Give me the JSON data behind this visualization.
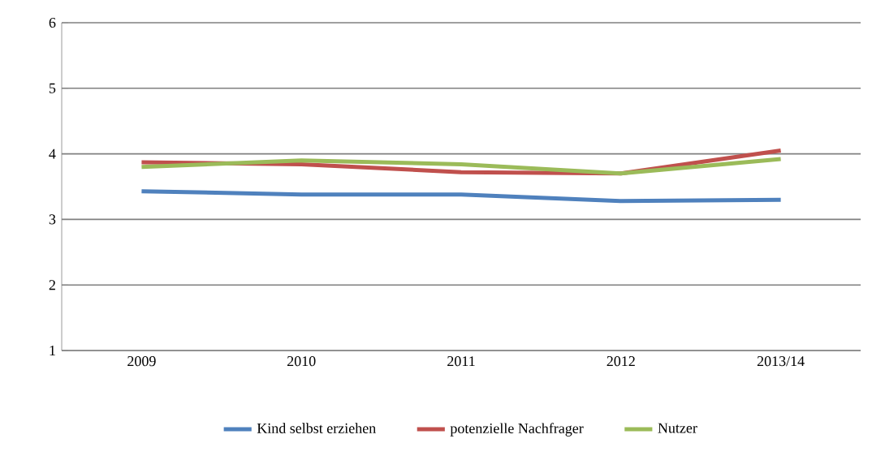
{
  "chart_data": {
    "type": "line",
    "categories": [
      "2009",
      "2010",
      "2011",
      "2012",
      "2013/14"
    ],
    "series": [
      {
        "name": "Kind selbst erziehen",
        "color": "#4f81bd",
        "values": [
          3.43,
          3.38,
          3.38,
          3.28,
          3.3
        ]
      },
      {
        "name": "potenzielle Nachfrager",
        "color": "#c0504d",
        "values": [
          3.87,
          3.84,
          3.72,
          3.7,
          4.05
        ]
      },
      {
        "name": "Nutzer",
        "color": "#9bbb59",
        "values": [
          3.8,
          3.9,
          3.84,
          3.7,
          3.92
        ]
      }
    ],
    "ylim": [
      1,
      6
    ],
    "yticks": [
      1,
      2,
      3,
      4,
      5,
      6
    ],
    "grid": "y",
    "legend": "bottom",
    "marker": "none",
    "line_style": "solid"
  }
}
